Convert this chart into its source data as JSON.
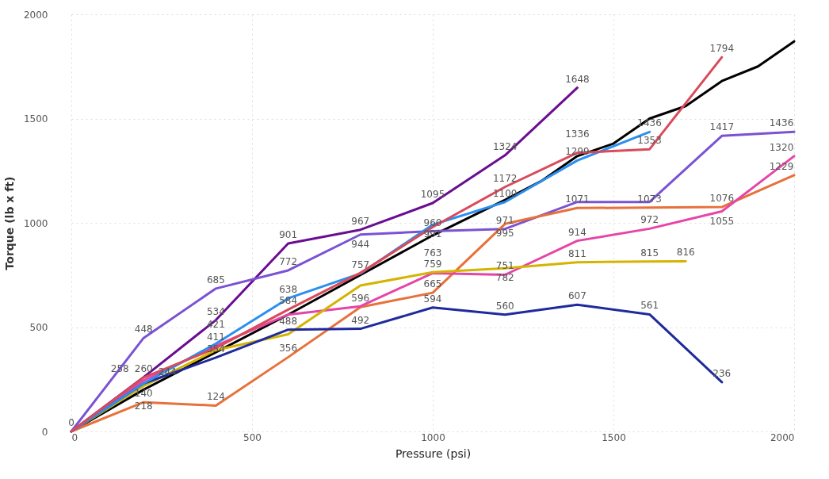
{
  "chart_data": {
    "type": "line",
    "xlabel": "Pressure (psi)",
    "ylabel": "Torque (lb x ft)",
    "xlim": [
      0,
      2000
    ],
    "xticks": [
      0,
      500,
      1000,
      1500,
      2000
    ],
    "ylim": [
      0,
      2000
    ],
    "yticks": [
      0,
      500,
      1000,
      1500,
      2000
    ],
    "grid": true,
    "line_style": "solid",
    "marker": "none",
    "series": [
      {
        "color": "#000000",
        "x": [
          0,
          200,
          400,
          600,
          800,
          1000,
          1200,
          1300,
          1400,
          1500,
          1600,
          1700,
          1800,
          1900,
          2000
        ],
        "values": [
          0,
          200,
          380,
          560,
          750,
          940,
          1110,
          1200,
          1320,
          1380,
          1500,
          1560,
          1680,
          1750,
          1870
        ]
      },
      {
        "color": "#6a0d91",
        "x": [
          0,
          200,
          400,
          600,
          800,
          1000,
          1200,
          1400
        ],
        "values": [
          0,
          260,
          534,
          901,
          967,
          1095,
          1324,
          1648
        ],
        "value_labels": [
          "0",
          "260",
          "534",
          "901",
          "967",
          "1095",
          "1324",
          "1648"
        ]
      },
      {
        "color": "#7b52d3",
        "x": [
          0,
          200,
          400,
          600,
          800,
          1000,
          1200,
          1400,
          1600,
          1800,
          2000
        ],
        "values": [
          0,
          448,
          685,
          772,
          944,
          960,
          971,
          1100,
          1100,
          1417,
          1436
        ],
        "value_labels": [
          null,
          "448",
          "685",
          "772",
          "944",
          "960",
          "971",
          null,
          null,
          "1417",
          "1436"
        ]
      },
      {
        "color": "#e8703a",
        "x": [
          0,
          200,
          400,
          600,
          800,
          1000,
          1200,
          1400,
          1600,
          1800,
          2000
        ],
        "values": [
          0,
          140,
          124,
          356,
          596,
          665,
          995,
          1071,
          1073,
          1076,
          1229
        ],
        "value_labels": [
          null,
          "140",
          "124",
          "356",
          "596",
          "665",
          "995",
          "1071",
          "1073",
          "1076",
          "1229"
        ]
      },
      {
        "color": "#e645a8",
        "x": [
          0,
          200,
          400,
          600,
          800,
          1000,
          1200,
          1400,
          1600,
          1800,
          2000
        ],
        "values": [
          0,
          244,
          411,
          560,
          600,
          759,
          751,
          914,
          972,
          1055,
          1320
        ],
        "value_labels": [
          null,
          "244",
          "411",
          null,
          null,
          "759",
          "751",
          "914",
          "972",
          "1055",
          "1320"
        ]
      },
      {
        "color": "#d4b400",
        "x": [
          0,
          200,
          400,
          600,
          800,
          1000,
          1200,
          1400,
          1600,
          1700
        ],
        "values": [
          0,
          218,
          390,
          466,
          700,
          763,
          782,
          811,
          815,
          816
        ],
        "value_labels": [
          null,
          "218",
          null,
          null,
          null,
          "763",
          "782",
          "811",
          "815",
          "816"
        ]
      },
      {
        "color": "#1f2a9c",
        "x": [
          0,
          200,
          400,
          600,
          800,
          1000,
          1200,
          1400,
          1600,
          1800
        ],
        "values": [
          0,
          230,
          354,
          488,
          492,
          594,
          560,
          607,
          561,
          236
        ],
        "value_labels": [
          null,
          null,
          "354",
          "488",
          "492",
          "594",
          "560",
          "607",
          "561",
          "236"
        ]
      },
      {
        "color": "#2a8ff0",
        "x": [
          0,
          200,
          400,
          600,
          800,
          1000,
          1200,
          1400,
          1600
        ],
        "values": [
          0,
          230,
          421,
          638,
          757,
          991,
          1100,
          1299,
          1436
        ],
        "value_labels": [
          null,
          null,
          "421",
          "638",
          "757",
          "991",
          "1100",
          "1299",
          "1436"
        ]
      },
      {
        "color": "#d94a5a",
        "x": [
          0,
          200,
          400,
          600,
          800,
          1000,
          1200,
          1400,
          1600,
          1800
        ],
        "values": [
          0,
          258,
          400,
          584,
          760,
          980,
          1172,
          1336,
          1353,
          1794
        ],
        "value_labels": [
          null,
          "258",
          null,
          "584",
          null,
          null,
          "1172",
          "1336",
          "1353",
          "1794"
        ]
      }
    ]
  }
}
